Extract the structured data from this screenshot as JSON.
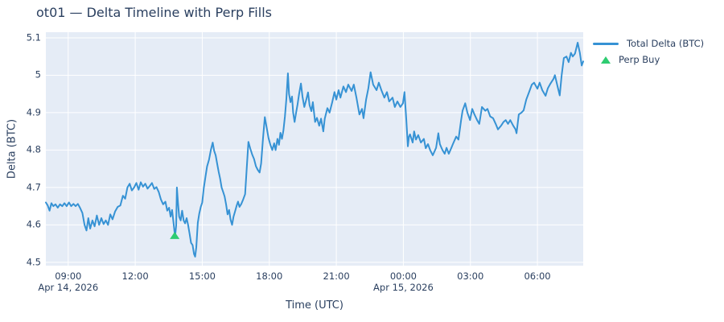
{
  "page_title": "ot01 — Delta Timeline with Perp Fills",
  "colors": {
    "text": "#2a3f5f",
    "paper_bg": "#ffffff",
    "plot_bg": "#e5ecf6",
    "grid": "#ffffff",
    "line": "#3692d4",
    "marker": "#2ecc71"
  },
  "legend": {
    "items": [
      {
        "label": "Total Delta (BTC)",
        "type": "line"
      },
      {
        "label": "Perp Buy",
        "type": "triangle-up"
      }
    ]
  },
  "chart_data": {
    "type": "line",
    "title": "ot01 — Delta Timeline with Perp Fills",
    "xlabel": "Time (UTC)",
    "ylabel": "Delta (BTC)",
    "x_unit": "minutes since Apr 14, 2026 08:00 UTC",
    "xlim": [
      0,
      1443
    ],
    "ylim": [
      4.491,
      5.115
    ],
    "grid": true,
    "legend_position": "top-right-outside",
    "x_ticks": [
      {
        "t": 60,
        "label": "09:00"
      },
      {
        "t": 240,
        "label": "12:00"
      },
      {
        "t": 420,
        "label": "15:00"
      },
      {
        "t": 600,
        "label": "18:00"
      },
      {
        "t": 780,
        "label": "21:00"
      },
      {
        "t": 960,
        "label": "00:00"
      },
      {
        "t": 1140,
        "label": "03:00"
      },
      {
        "t": 1320,
        "label": "06:00"
      }
    ],
    "x_date_labels": [
      {
        "t": 60,
        "label": "Apr 14, 2026"
      },
      {
        "t": 960,
        "label": "Apr 15, 2026"
      }
    ],
    "y_ticks": [
      {
        "v": 4.5,
        "label": "4.5"
      },
      {
        "v": 4.6,
        "label": "4.6"
      },
      {
        "v": 4.7,
        "label": "4.7"
      },
      {
        "v": 4.8,
        "label": "4.8"
      },
      {
        "v": 4.9,
        "label": "4.9"
      },
      {
        "v": 5.0,
        "label": "5"
      },
      {
        "v": 5.1,
        "label": "5.1"
      }
    ],
    "series": [
      {
        "name": "Total Delta (BTC)",
        "color": "#3692d4",
        "points": [
          [
            0,
            4.66
          ],
          [
            5,
            4.652
          ],
          [
            10,
            4.638
          ],
          [
            15,
            4.658
          ],
          [
            20,
            4.65
          ],
          [
            26,
            4.655
          ],
          [
            32,
            4.646
          ],
          [
            38,
            4.655
          ],
          [
            44,
            4.65
          ],
          [
            50,
            4.658
          ],
          [
            56,
            4.65
          ],
          [
            62,
            4.66
          ],
          [
            68,
            4.65
          ],
          [
            74,
            4.656
          ],
          [
            80,
            4.65
          ],
          [
            86,
            4.656
          ],
          [
            92,
            4.645
          ],
          [
            98,
            4.632
          ],
          [
            104,
            4.6
          ],
          [
            109,
            4.585
          ],
          [
            114,
            4.618
          ],
          [
            119,
            4.59
          ],
          [
            125,
            4.612
          ],
          [
            131,
            4.596
          ],
          [
            137,
            4.625
          ],
          [
            143,
            4.6
          ],
          [
            149,
            4.618
          ],
          [
            155,
            4.602
          ],
          [
            161,
            4.612
          ],
          [
            167,
            4.6
          ],
          [
            173,
            4.628
          ],
          [
            179,
            4.615
          ],
          [
            186,
            4.636
          ],
          [
            193,
            4.648
          ],
          [
            200,
            4.652
          ],
          [
            207,
            4.678
          ],
          [
            213,
            4.67
          ],
          [
            219,
            4.7
          ],
          [
            225,
            4.71
          ],
          [
            231,
            4.692
          ],
          [
            237,
            4.7
          ],
          [
            243,
            4.712
          ],
          [
            249,
            4.694
          ],
          [
            255,
            4.714
          ],
          [
            261,
            4.702
          ],
          [
            267,
            4.71
          ],
          [
            273,
            4.697
          ],
          [
            279,
            4.704
          ],
          [
            285,
            4.712
          ],
          [
            291,
            4.696
          ],
          [
            297,
            4.701
          ],
          [
            303,
            4.688
          ],
          [
            309,
            4.668
          ],
          [
            315,
            4.655
          ],
          [
            321,
            4.662
          ],
          [
            326,
            4.638
          ],
          [
            331,
            4.646
          ],
          [
            335,
            4.622
          ],
          [
            339,
            4.64
          ],
          [
            343,
            4.604
          ],
          [
            347,
            4.568
          ],
          [
            350,
            4.598
          ],
          [
            352,
            4.7
          ],
          [
            355,
            4.658
          ],
          [
            358,
            4.622
          ],
          [
            362,
            4.612
          ],
          [
            366,
            4.638
          ],
          [
            370,
            4.612
          ],
          [
            374,
            4.604
          ],
          [
            378,
            4.618
          ],
          [
            382,
            4.6
          ],
          [
            386,
            4.576
          ],
          [
            390,
            4.552
          ],
          [
            394,
            4.546
          ],
          [
            398,
            4.522
          ],
          [
            401,
            4.515
          ],
          [
            404,
            4.54
          ],
          [
            408,
            4.606
          ],
          [
            412,
            4.63
          ],
          [
            416,
            4.648
          ],
          [
            420,
            4.66
          ],
          [
            424,
            4.698
          ],
          [
            428,
            4.724
          ],
          [
            433,
            4.756
          ],
          [
            438,
            4.774
          ],
          [
            443,
            4.8
          ],
          [
            448,
            4.82
          ],
          [
            452,
            4.798
          ],
          [
            456,
            4.786
          ],
          [
            460,
            4.764
          ],
          [
            464,
            4.742
          ],
          [
            468,
            4.724
          ],
          [
            472,
            4.7
          ],
          [
            476,
            4.688
          ],
          [
            480,
            4.676
          ],
          [
            484,
            4.654
          ],
          [
            488,
            4.628
          ],
          [
            492,
            4.64
          ],
          [
            496,
            4.614
          ],
          [
            500,
            4.6
          ],
          [
            504,
            4.622
          ],
          [
            508,
            4.636
          ],
          [
            512,
            4.65
          ],
          [
            516,
            4.662
          ],
          [
            520,
            4.648
          ],
          [
            525,
            4.656
          ],
          [
            530,
            4.668
          ],
          [
            535,
            4.682
          ],
          [
            539,
            4.744
          ],
          [
            544,
            4.822
          ],
          [
            549,
            4.804
          ],
          [
            554,
            4.788
          ],
          [
            559,
            4.776
          ],
          [
            564,
            4.757
          ],
          [
            569,
            4.747
          ],
          [
            574,
            4.74
          ],
          [
            578,
            4.764
          ],
          [
            583,
            4.83
          ],
          [
            588,
            4.888
          ],
          [
            593,
            4.86
          ],
          [
            598,
            4.832
          ],
          [
            603,
            4.814
          ],
          [
            608,
            4.8
          ],
          [
            613,
            4.818
          ],
          [
            617,
            4.8
          ],
          [
            622,
            4.83
          ],
          [
            626,
            4.814
          ],
          [
            630,
            4.846
          ],
          [
            634,
            4.83
          ],
          [
            638,
            4.852
          ],
          [
            642,
            4.89
          ],
          [
            646,
            4.937
          ],
          [
            650,
            5.005
          ],
          [
            653,
            4.95
          ],
          [
            657,
            4.928
          ],
          [
            661,
            4.943
          ],
          [
            664,
            4.9
          ],
          [
            668,
            4.875
          ],
          [
            672,
            4.9
          ],
          [
            676,
            4.922
          ],
          [
            680,
            4.95
          ],
          [
            685,
            4.978
          ],
          [
            689,
            4.943
          ],
          [
            694,
            4.915
          ],
          [
            700,
            4.937
          ],
          [
            704,
            4.954
          ],
          [
            708,
            4.92
          ],
          [
            713,
            4.904
          ],
          [
            717,
            4.928
          ],
          [
            723,
            4.875
          ],
          [
            728,
            4.886
          ],
          [
            734,
            4.865
          ],
          [
            739,
            4.884
          ],
          [
            745,
            4.85
          ],
          [
            749,
            4.884
          ],
          [
            756,
            4.912
          ],
          [
            762,
            4.9
          ],
          [
            769,
            4.928
          ],
          [
            775,
            4.955
          ],
          [
            780,
            4.935
          ],
          [
            786,
            4.96
          ],
          [
            791,
            4.94
          ],
          [
            799,
            4.97
          ],
          [
            806,
            4.955
          ],
          [
            812,
            4.975
          ],
          [
            821,
            4.958
          ],
          [
            827,
            4.975
          ],
          [
            834,
            4.94
          ],
          [
            842,
            4.895
          ],
          [
            849,
            4.91
          ],
          [
            853,
            4.885
          ],
          [
            860,
            4.935
          ],
          [
            866,
            4.965
          ],
          [
            872,
            5.008
          ],
          [
            879,
            4.975
          ],
          [
            888,
            4.96
          ],
          [
            894,
            4.98
          ],
          [
            901,
            4.96
          ],
          [
            909,
            4.94
          ],
          [
            916,
            4.955
          ],
          [
            922,
            4.93
          ],
          [
            931,
            4.94
          ],
          [
            937,
            4.915
          ],
          [
            944,
            4.93
          ],
          [
            952,
            4.915
          ],
          [
            959,
            4.925
          ],
          [
            963,
            4.955
          ],
          [
            968,
            4.88
          ],
          [
            972,
            4.81
          ],
          [
            975,
            4.836
          ],
          [
            978,
            4.842
          ],
          [
            985,
            4.82
          ],
          [
            989,
            4.85
          ],
          [
            994,
            4.828
          ],
          [
            1000,
            4.84
          ],
          [
            1007,
            4.82
          ],
          [
            1015,
            4.83
          ],
          [
            1020,
            4.805
          ],
          [
            1026,
            4.816
          ],
          [
            1032,
            4.8
          ],
          [
            1039,
            4.786
          ],
          [
            1048,
            4.806
          ],
          [
            1054,
            4.845
          ],
          [
            1058,
            4.816
          ],
          [
            1065,
            4.8
          ],
          [
            1071,
            4.79
          ],
          [
            1076,
            4.806
          ],
          [
            1082,
            4.79
          ],
          [
            1089,
            4.806
          ],
          [
            1093,
            4.816
          ],
          [
            1102,
            4.836
          ],
          [
            1108,
            4.828
          ],
          [
            1115,
            4.88
          ],
          [
            1119,
            4.905
          ],
          [
            1126,
            4.925
          ],
          [
            1132,
            4.9
          ],
          [
            1139,
            4.88
          ],
          [
            1145,
            4.91
          ],
          [
            1151,
            4.895
          ],
          [
            1158,
            4.88
          ],
          [
            1164,
            4.87
          ],
          [
            1171,
            4.915
          ],
          [
            1180,
            4.905
          ],
          [
            1186,
            4.91
          ],
          [
            1193,
            4.89
          ],
          [
            1201,
            4.885
          ],
          [
            1208,
            4.87
          ],
          [
            1214,
            4.855
          ],
          [
            1223,
            4.866
          ],
          [
            1229,
            4.875
          ],
          [
            1235,
            4.88
          ],
          [
            1241,
            4.87
          ],
          [
            1247,
            4.88
          ],
          [
            1255,
            4.865
          ],
          [
            1261,
            4.856
          ],
          [
            1264,
            4.845
          ],
          [
            1270,
            4.895
          ],
          [
            1277,
            4.9
          ],
          [
            1283,
            4.906
          ],
          [
            1290,
            4.935
          ],
          [
            1298,
            4.956
          ],
          [
            1305,
            4.975
          ],
          [
            1311,
            4.98
          ],
          [
            1320,
            4.964
          ],
          [
            1326,
            4.98
          ],
          [
            1333,
            4.96
          ],
          [
            1342,
            4.945
          ],
          [
            1348,
            4.965
          ],
          [
            1354,
            4.976
          ],
          [
            1363,
            4.99
          ],
          [
            1367,
            5.0
          ],
          [
            1374,
            4.97
          ],
          [
            1380,
            4.946
          ],
          [
            1385,
            5.0
          ],
          [
            1391,
            5.046
          ],
          [
            1398,
            5.05
          ],
          [
            1404,
            5.035
          ],
          [
            1410,
            5.06
          ],
          [
            1415,
            5.05
          ],
          [
            1421,
            5.058
          ],
          [
            1428,
            5.087
          ],
          [
            1434,
            5.06
          ],
          [
            1439,
            5.026
          ],
          [
            1443,
            5.037
          ]
        ]
      }
    ],
    "markers": [
      {
        "name": "Perp Buy",
        "symbol": "triangle-up",
        "color": "#2ecc71",
        "points": [
          [
            346,
            4.572
          ]
        ]
      }
    ]
  }
}
